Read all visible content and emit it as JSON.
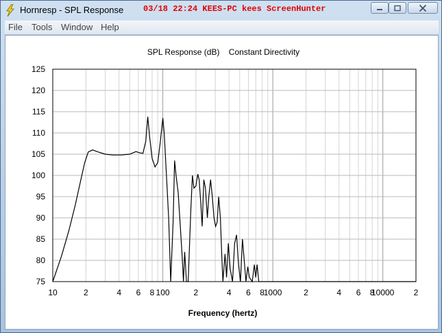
{
  "window": {
    "title": "Hornresp - SPL Response",
    "overlay_text": "03/18  22:24  KEES-PC  kees  ScreenHunter"
  },
  "title_buttons": [
    "minimize-icon",
    "maximize-icon",
    "close-icon"
  ],
  "menu": [
    "File",
    "Tools",
    "Window",
    "Help"
  ],
  "chart_data": {
    "type": "line",
    "title": "SPL Response (dB)    Constant Directivity",
    "xlabel": "Frequency (hertz)",
    "ylabel": "",
    "x_scale": "log",
    "xlim": [
      10,
      20000
    ],
    "ylim": [
      75,
      125
    ],
    "grid": true,
    "y_ticks": [
      75,
      80,
      85,
      90,
      95,
      100,
      105,
      110,
      115,
      120,
      125
    ],
    "x_ticks": [
      {
        "value": 10,
        "label": "10"
      },
      {
        "value": 20,
        "label": "2"
      },
      {
        "value": 40,
        "label": "4"
      },
      {
        "value": 60,
        "label": "6"
      },
      {
        "value": 80,
        "label": "8"
      },
      {
        "value": 100,
        "label": "100"
      },
      {
        "value": 200,
        "label": "2"
      },
      {
        "value": 400,
        "label": "4"
      },
      {
        "value": 600,
        "label": "6"
      },
      {
        "value": 800,
        "label": "8"
      },
      {
        "value": 1000,
        "label": "1000"
      },
      {
        "value": 2000,
        "label": "2"
      },
      {
        "value": 4000,
        "label": "4"
      },
      {
        "value": 6000,
        "label": "6"
      },
      {
        "value": 8000,
        "label": "8"
      },
      {
        "value": 10000,
        "label": "10000"
      },
      {
        "value": 20000,
        "label": "2"
      }
    ],
    "series": [
      {
        "color": "#000000",
        "points": [
          [
            10,
            75
          ],
          [
            12,
            81
          ],
          [
            14,
            87
          ],
          [
            16,
            93
          ],
          [
            18,
            99
          ],
          [
            19.5,
            103
          ],
          [
            21,
            105.5
          ],
          [
            23,
            106
          ],
          [
            26,
            105.5
          ],
          [
            30,
            105
          ],
          [
            35,
            104.8
          ],
          [
            42,
            104.8
          ],
          [
            50,
            105
          ],
          [
            57,
            105.6
          ],
          [
            62,
            105.3
          ],
          [
            66,
            105.2
          ],
          [
            70,
            108
          ],
          [
            73,
            113.8
          ],
          [
            76,
            109
          ],
          [
            80,
            104
          ],
          [
            85,
            102
          ],
          [
            90,
            103
          ],
          [
            95,
            108
          ],
          [
            100,
            113.5
          ],
          [
            103,
            110
          ],
          [
            108,
            100
          ],
          [
            113,
            90
          ],
          [
            118,
            75
          ],
          [
            124,
            89
          ],
          [
            128,
            103.5
          ],
          [
            132,
            100
          ],
          [
            138,
            96
          ],
          [
            145,
            87
          ],
          [
            150,
            81
          ],
          [
            154,
            75
          ],
          [
            158,
            82
          ],
          [
            164,
            75
          ],
          [
            170,
            75
          ],
          [
            180,
            92
          ],
          [
            186,
            100
          ],
          [
            192,
            97
          ],
          [
            200,
            97.5
          ],
          [
            208,
            100.3
          ],
          [
            214,
            99
          ],
          [
            222,
            93
          ],
          [
            228,
            88
          ],
          [
            236,
            99
          ],
          [
            244,
            97
          ],
          [
            254,
            90
          ],
          [
            262,
            95
          ],
          [
            272,
            99
          ],
          [
            282,
            95
          ],
          [
            292,
            90
          ],
          [
            302,
            88
          ],
          [
            312,
            89
          ],
          [
            322,
            95
          ],
          [
            334,
            90
          ],
          [
            345,
            80
          ],
          [
            352,
            75
          ],
          [
            368,
            81.5
          ],
          [
            380,
            76
          ],
          [
            394,
            84
          ],
          [
            410,
            78
          ],
          [
            430,
            75
          ],
          [
            450,
            84
          ],
          [
            468,
            86
          ],
          [
            488,
            79
          ],
          [
            508,
            75
          ],
          [
            530,
            85
          ],
          [
            550,
            80
          ],
          [
            570,
            75
          ],
          [
            592,
            78.5
          ],
          [
            612,
            76
          ],
          [
            650,
            75
          ],
          [
            680,
            79
          ],
          [
            700,
            76
          ],
          [
            720,
            79
          ],
          [
            745,
            75
          ],
          [
            1000,
            75
          ],
          [
            20000,
            75
          ]
        ]
      }
    ]
  }
}
